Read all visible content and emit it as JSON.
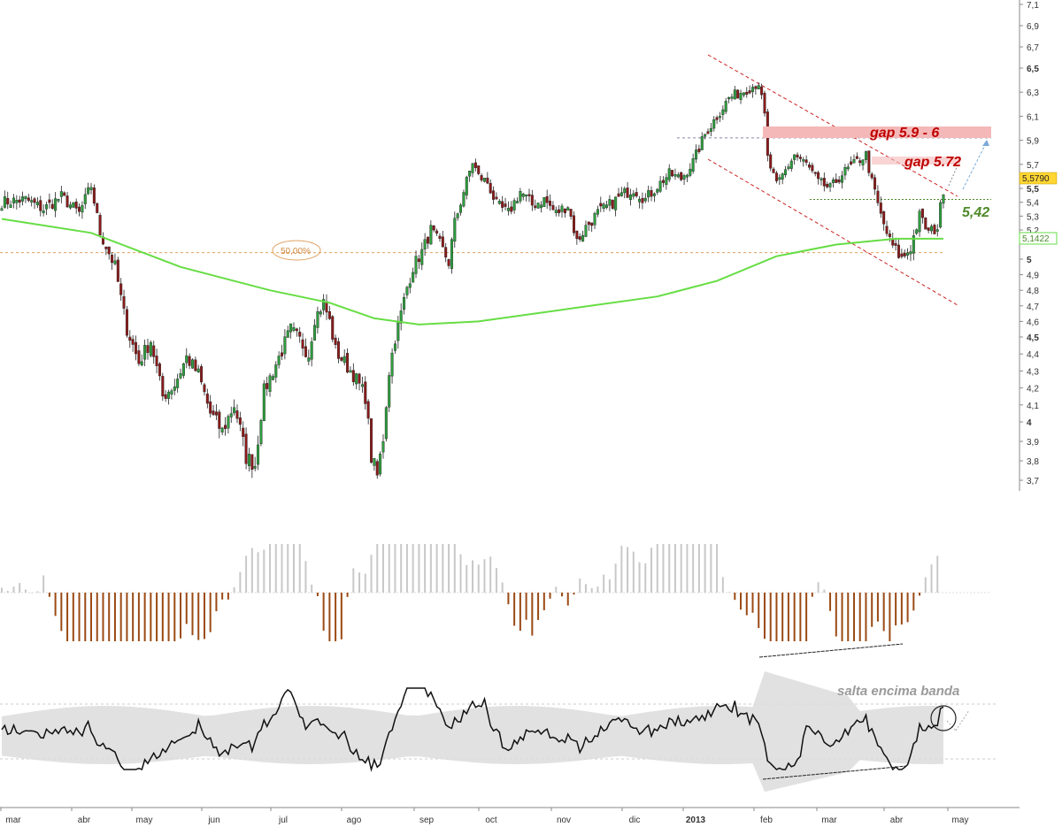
{
  "chart_data": [
    {
      "type": "candlestick",
      "panel": "price",
      "y_ticks": [
        "7,1",
        "6,9",
        "6,7",
        "6,5",
        "6,3",
        "6,1",
        "5,9",
        "5,7",
        "5,5",
        "5,4",
        "5,3",
        "5,2",
        "5",
        "4,9",
        "4,8",
        "4,7",
        "4,6",
        "4,5",
        "4,4",
        "4,3",
        "4,2",
        "4,1",
        "4",
        "3,9",
        "3,8",
        "3,7"
      ],
      "ylim": [
        3.66,
        7.12
      ],
      "x_labels": [
        "mar",
        "abr",
        "may",
        "jun",
        "jul",
        "ago",
        "sep",
        "oct",
        "nov",
        "dic",
        "2013",
        "feb",
        "mar",
        "abr",
        "may"
      ],
      "price_path": [
        [
          0,
          5.4
        ],
        [
          8,
          5.42
        ],
        [
          14,
          5.35
        ],
        [
          20,
          5.44
        ],
        [
          26,
          5.32
        ],
        [
          30,
          5.52
        ],
        [
          33,
          5.18
        ],
        [
          38,
          4.95
        ],
        [
          42,
          4.55
        ],
        [
          46,
          4.35
        ],
        [
          50,
          4.48
        ],
        [
          54,
          4.15
        ],
        [
          58,
          4.22
        ],
        [
          62,
          4.38
        ],
        [
          66,
          4.28
        ],
        [
          70,
          4.05
        ],
        [
          74,
          3.95
        ],
        [
          78,
          4.1
        ],
        [
          82,
          3.82
        ],
        [
          85,
          3.78
        ],
        [
          88,
          4.18
        ],
        [
          91,
          4.3
        ],
        [
          94,
          4.42
        ],
        [
          97,
          4.55
        ],
        [
          100,
          4.48
        ],
        [
          103,
          4.4
        ],
        [
          105,
          4.62
        ],
        [
          108,
          4.72
        ],
        [
          110,
          4.6
        ],
        [
          112,
          4.42
        ],
        [
          115,
          4.35
        ],
        [
          118,
          4.28
        ],
        [
          122,
          4.15
        ],
        [
          124,
          3.82
        ],
        [
          126,
          3.72
        ],
        [
          128,
          3.92
        ],
        [
          130,
          4.3
        ],
        [
          132,
          4.5
        ],
        [
          134,
          4.65
        ],
        [
          136,
          4.82
        ],
        [
          138,
          4.95
        ],
        [
          141,
          5.05
        ],
        [
          144,
          5.2
        ],
        [
          147,
          5.1
        ],
        [
          150,
          4.98
        ],
        [
          152,
          5.25
        ],
        [
          155,
          5.48
        ],
        [
          158,
          5.72
        ],
        [
          160,
          5.6
        ],
        [
          163,
          5.55
        ],
        [
          166,
          5.38
        ],
        [
          170,
          5.32
        ],
        [
          174,
          5.48
        ],
        [
          178,
          5.38
        ],
        [
          182,
          5.42
        ],
        [
          186,
          5.32
        ],
        [
          190,
          5.38
        ],
        [
          193,
          5.12
        ],
        [
          196,
          5.22
        ],
        [
          200,
          5.32
        ],
        [
          204,
          5.38
        ],
        [
          208,
          5.45
        ],
        [
          212,
          5.5
        ],
        [
          216,
          5.42
        ],
        [
          220,
          5.52
        ],
        [
          224,
          5.62
        ],
        [
          228,
          5.58
        ],
        [
          232,
          5.72
        ],
        [
          236,
          5.95
        ],
        [
          240,
          6.1
        ],
        [
          244,
          6.25
        ],
        [
          248,
          6.3
        ],
        [
          252,
          6.35
        ],
        [
          254,
          6.38
        ],
        [
          256,
          6.1
        ],
        [
          257,
          5.75
        ],
        [
          260,
          5.52
        ],
        [
          263,
          5.65
        ],
        [
          266,
          5.78
        ],
        [
          270,
          5.7
        ],
        [
          274,
          5.55
        ],
        [
          278,
          5.5
        ],
        [
          282,
          5.62
        ],
        [
          286,
          5.7
        ],
        [
          290,
          5.78
        ],
        [
          292,
          5.55
        ],
        [
          295,
          5.3
        ],
        [
          298,
          5.12
        ],
        [
          302,
          5.0
        ],
        [
          305,
          5.08
        ],
        [
          308,
          5.3
        ],
        [
          311,
          5.18
        ],
        [
          314,
          5.22
        ],
        [
          316,
          5.5
        ]
      ],
      "last_price": "5,5790",
      "ma_value": "5,1422",
      "ma200_path": [
        [
          0,
          5.28
        ],
        [
          30,
          5.18
        ],
        [
          60,
          4.95
        ],
        [
          90,
          4.8
        ],
        [
          110,
          4.72
        ],
        [
          125,
          4.62
        ],
        [
          140,
          4.58
        ],
        [
          160,
          4.6
        ],
        [
          190,
          4.68
        ],
        [
          220,
          4.76
        ],
        [
          240,
          4.86
        ],
        [
          260,
          5.02
        ],
        [
          280,
          5.1
        ],
        [
          300,
          5.14
        ],
        [
          316,
          5.14
        ]
      ],
      "annotations": {
        "gap_upper": "gap 5.9 - 6",
        "gap_lower": "gap 5.72",
        "support_level": "5,42",
        "fib_level": "50,00%"
      }
    },
    {
      "type": "histogram",
      "panel": "oscillator",
      "note": "positive bars grey, negative bars brown"
    },
    {
      "type": "line",
      "panel": "indicator-with-band",
      "annotation": "salta encima banda"
    }
  ],
  "colors": {
    "up_candle": "#2e9e3e",
    "down_candle": "#8b1a1a",
    "ma200": "#66dd44",
    "channel": "#cc2222",
    "gap_box": "#f4b8b8",
    "gap_text": "#c00000",
    "level_text": "#4f8a2a",
    "hist_pos": "#c8c8c8",
    "hist_neg": "#9b4a14",
    "band": "#dcdcdc",
    "fib": "#e0a060",
    "price_badge": "#ffd633"
  }
}
